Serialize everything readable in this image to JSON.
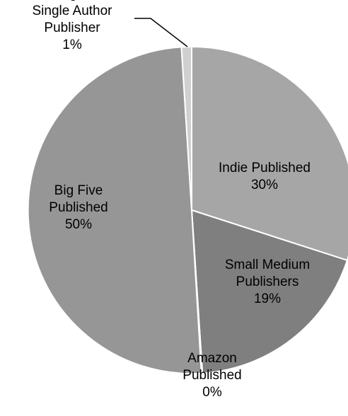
{
  "chart_data": {
    "type": "pie",
    "title": "",
    "slices": [
      {
        "label_lines": [
          "Indie Published",
          "30%"
        ],
        "label": "Indie Published",
        "value": 30,
        "color": "#a6a6a6"
      },
      {
        "label_lines": [
          "Small Medium",
          "Publishers",
          "19%"
        ],
        "label": "Small Medium Publishers",
        "value": 19,
        "color": "#7f7f7f"
      },
      {
        "label_lines": [
          "Amazon",
          "Published",
          "0%"
        ],
        "label": "Amazon Published",
        "value": 0.1,
        "color": "#d9d9d9"
      },
      {
        "label_lines": [
          "Big Five",
          "Published",
          "50%"
        ],
        "label": "Big Five Published",
        "value": 50,
        "color": "#969696"
      },
      {
        "label_lines": [
          "Uncategorized/",
          "Single Author",
          "Publisher",
          "1%"
        ],
        "label": "Uncategorized/ Single Author Publisher",
        "value": 1,
        "color": "#d0d0d0"
      }
    ]
  }
}
